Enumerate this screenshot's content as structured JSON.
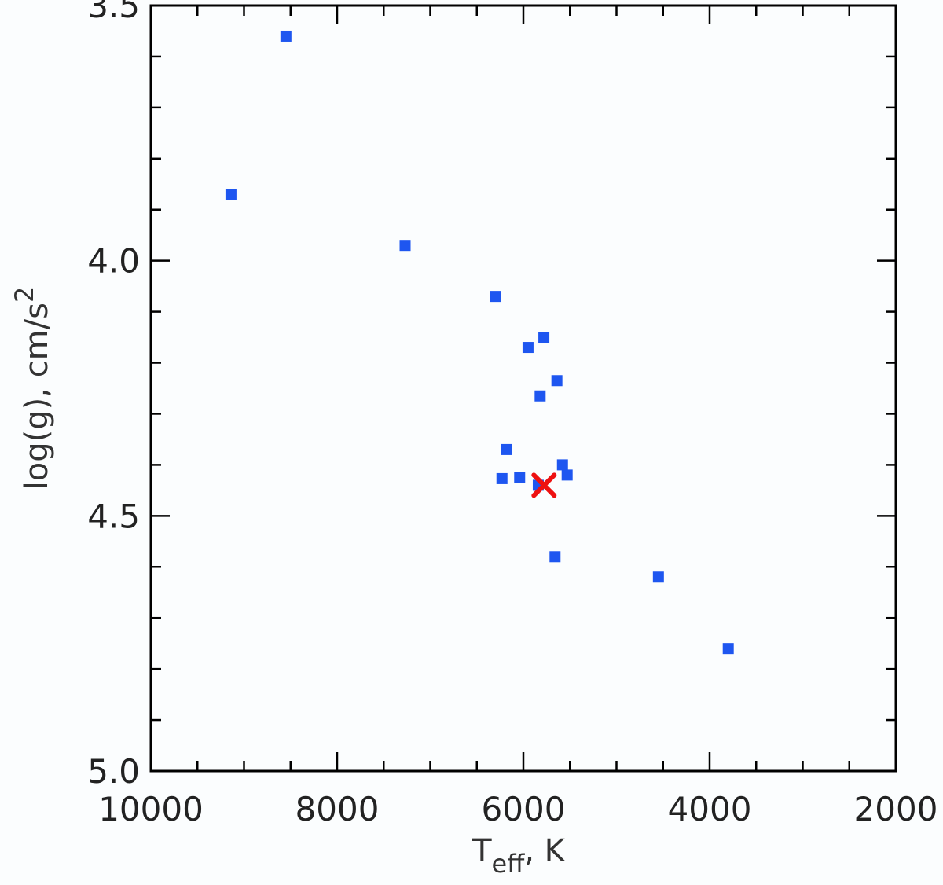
{
  "chart_data": {
    "type": "scatter",
    "title": "",
    "xlabel": "T",
    "xlabel_sub": "eff",
    "xlabel_suffix": ", K",
    "ylabel": "log(g), cm/s",
    "ylabel_sup": "2",
    "xlim": [
      10000,
      2000
    ],
    "ylim": [
      5.0,
      3.5
    ],
    "x_ticks": [
      10000,
      8000,
      6000,
      4000,
      2000
    ],
    "x_tick_labels": [
      "10000",
      "8000",
      "6000",
      "4000",
      "2000"
    ],
    "y_ticks": [
      3.5,
      4.0,
      4.5,
      5.0
    ],
    "y_tick_labels": [
      "3.5",
      "4.0",
      "4.5",
      "5.0"
    ],
    "grid": false,
    "series": [
      {
        "marker": "square",
        "color": "#1e56f0",
        "points": [
          {
            "x": 8550,
            "y": 3.56
          },
          {
            "x": 9140,
            "y": 3.87
          },
          {
            "x": 7270,
            "y": 3.97
          },
          {
            "x": 6300,
            "y": 4.07
          },
          {
            "x": 5950,
            "y": 4.17
          },
          {
            "x": 5780,
            "y": 4.15
          },
          {
            "x": 5640,
            "y": 4.235
          },
          {
            "x": 5820,
            "y": 4.265
          },
          {
            "x": 6180,
            "y": 4.37
          },
          {
            "x": 5580,
            "y": 4.4
          },
          {
            "x": 5530,
            "y": 4.42
          },
          {
            "x": 6040,
            "y": 4.425
          },
          {
            "x": 6230,
            "y": 4.427
          },
          {
            "x": 5840,
            "y": 4.44
          },
          {
            "x": 5660,
            "y": 4.58
          },
          {
            "x": 4550,
            "y": 4.62
          },
          {
            "x": 3800,
            "y": 4.76
          }
        ]
      },
      {
        "marker": "x",
        "color": "#ee1111",
        "points": [
          {
            "x": 5778,
            "y": 4.44
          }
        ]
      }
    ]
  }
}
